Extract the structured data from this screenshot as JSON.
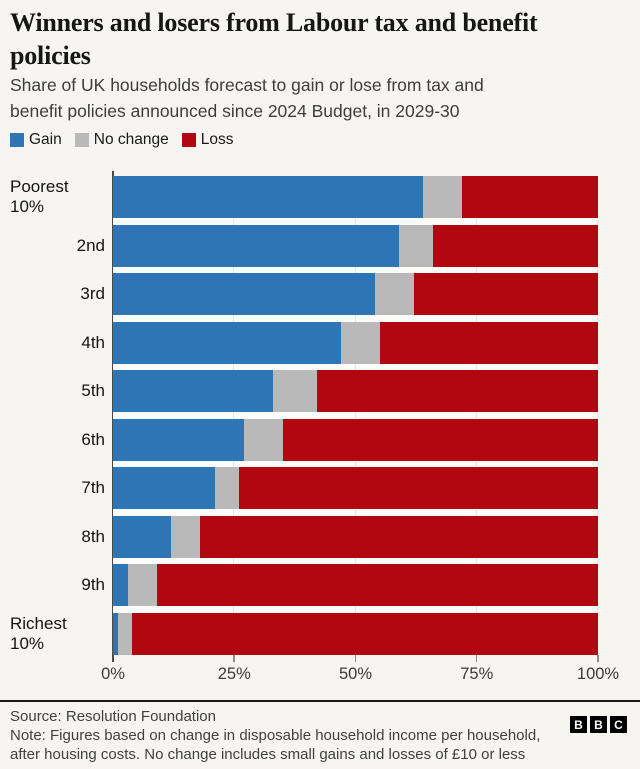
{
  "header": {
    "title": "Winners and losers from Labour tax and benefit policies",
    "title_lines": [
      "Winners and losers from Labour tax and benefit",
      "policies"
    ],
    "subtitle": "Share of UK households forecast to gain or lose from tax and benefit policies announced since 2024 Budget, in 2029-30",
    "subtitle_lines": [
      "Share of UK households forecast to gain or lose from tax and",
      "benefit policies announced since 2024 Budget, in 2029-30"
    ]
  },
  "legend": {
    "items": [
      {
        "label": "Gain",
        "color": "#2e75b5"
      },
      {
        "label": "No change",
        "color": "#b9b9b9"
      },
      {
        "label": "Loss",
        "color": "#b00710"
      }
    ]
  },
  "chart_data": {
    "type": "bar",
    "orientation": "horizontal",
    "stacked": true,
    "title": "Winners and losers from Labour tax and benefit policies",
    "xlabel": "",
    "ylabel": "",
    "unit": "%",
    "categories": [
      "Poorest 10%",
      "2nd",
      "3rd",
      "4th",
      "5th",
      "6th",
      "7th",
      "8th",
      "9th",
      "Richest 10%"
    ],
    "series": [
      {
        "name": "Gain",
        "color": "#2e75b5",
        "values": [
          64,
          59,
          54,
          47,
          33,
          27,
          21,
          12,
          3,
          1
        ]
      },
      {
        "name": "No change",
        "color": "#b9b9b9",
        "values": [
          8,
          7,
          8,
          8,
          9,
          8,
          5,
          6,
          6,
          3
        ]
      },
      {
        "name": "Loss",
        "color": "#b00710",
        "values": [
          28,
          34,
          38,
          45,
          58,
          65,
          74,
          82,
          91,
          96
        ]
      }
    ],
    "xlim": [
      0,
      100
    ],
    "x_tick_values": [
      0,
      25,
      50,
      75,
      100
    ],
    "x_tick_labels": [
      "0%",
      "25%",
      "50%",
      "75%",
      "100%"
    ],
    "gridlines": true,
    "legend_position": "top"
  },
  "footer": {
    "source": "Source: Resolution Foundation",
    "note": "Note: Figures based on change in disposable household income per household, after housing costs. No change includes small gains and losses of £10 or less",
    "note_lines": [
      "Note: Figures based on change in disposable household income per household,",
      "after housing costs. No change includes small gains and losses of £10 or less"
    ],
    "logo_letters": [
      "B",
      "B",
      "C"
    ]
  },
  "colors": {
    "background": "#f6f5f2",
    "plot_background": "#fbfbfa",
    "gain": "#2e75b5",
    "no_change": "#b9b9b9",
    "loss": "#b00710",
    "gridline": "#e7e6e3",
    "axis": "#4a4a4a",
    "divider": "#1a1a1a"
  }
}
